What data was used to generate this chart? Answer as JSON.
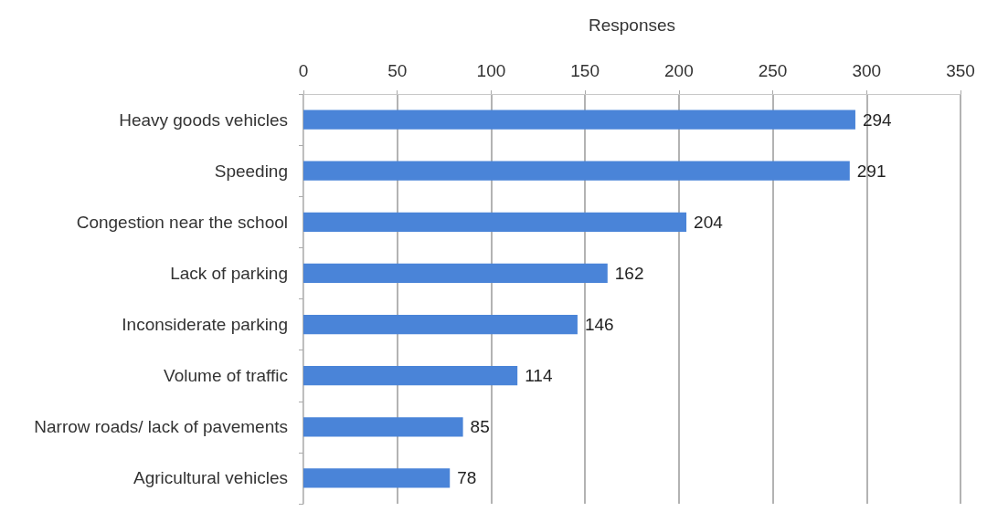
{
  "chart_data": {
    "type": "bar",
    "orientation": "horizontal",
    "xlabel": "Responses",
    "categories": [
      "Heavy goods vehicles",
      "Speeding",
      "Congestion near the school",
      "Lack of parking",
      "Inconsiderate parking",
      "Volume of traffic",
      "Narrow roads/ lack of pavements",
      "Agricultural vehicles"
    ],
    "values": [
      294,
      291,
      204,
      162,
      146,
      114,
      85,
      78
    ],
    "color": "#4a84d8",
    "xlim": [
      0,
      350
    ],
    "xticks": [
      0,
      50,
      100,
      150,
      200,
      250,
      300,
      350
    ],
    "grid": "x",
    "data_labels": true
  }
}
